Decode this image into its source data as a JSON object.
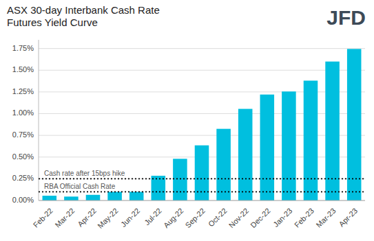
{
  "chart_data": {
    "type": "bar",
    "title": "ASX 30-day Interbank Cash Rate\nFutures Yield Curve",
    "categories": [
      "Feb-22",
      "Mar-22",
      "Apr-22",
      "May-22",
      "Jun-22",
      "Jul-22",
      "Aug-22",
      "Sep-22",
      "Oct-22",
      "Nov-22",
      "Dec-22",
      "Jan-23",
      "Feb-23",
      "Mar-23",
      "Apr-23"
    ],
    "values": [
      0.055,
      0.045,
      0.065,
      0.1,
      0.1,
      0.285,
      0.48,
      0.635,
      0.825,
      1.055,
      1.22,
      1.255,
      1.38,
      1.6,
      1.745
    ],
    "color": "#00BFDF",
    "ylim": [
      0,
      1.85
    ],
    "yticks": [
      {
        "value": 0.0,
        "label": "0.00%"
      },
      {
        "value": 0.25,
        "label": "0.25%"
      },
      {
        "value": 0.5,
        "label": "0.50%"
      },
      {
        "value": 0.75,
        "label": "0.75%"
      },
      {
        "value": 1.0,
        "label": "1.00%"
      },
      {
        "value": 1.25,
        "label": "1.25%"
      },
      {
        "value": 1.5,
        "label": "1.50%"
      },
      {
        "value": 1.75,
        "label": "1.75%"
      }
    ],
    "grid": true,
    "hlines": [
      {
        "value": 0.1,
        "label": "RBA Official Cash Rate"
      },
      {
        "value": 0.25,
        "label": "Cash rate after 15bps hike"
      }
    ],
    "logo": {
      "text": "JFD",
      "color": "#3d4a57"
    }
  }
}
